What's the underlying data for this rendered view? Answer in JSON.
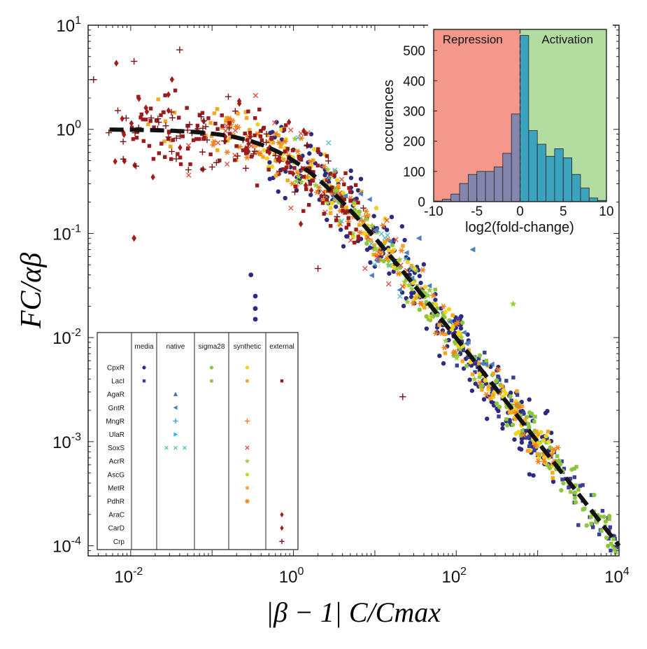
{
  "chart_data": [
    {
      "type": "scatter",
      "xlabel": "|β − 1| C/Cmax",
      "ylabel": "FC/αβ",
      "xscale": "log",
      "yscale": "log",
      "xlim": [
        0.003,
        10000
      ],
      "ylim": [
        8e-05,
        10
      ],
      "x_ticks": [
        {
          "value": 0.01,
          "base": "10",
          "exp": "-2"
        },
        {
          "value": 1,
          "base": "10",
          "exp": "0"
        },
        {
          "value": 100,
          "base": "10",
          "exp": "2"
        },
        {
          "value": 10000,
          "base": "10",
          "exp": "4"
        }
      ],
      "y_ticks": [
        {
          "value": 0.0001,
          "base": "10",
          "exp": "-4"
        },
        {
          "value": 0.001,
          "base": "10",
          "exp": "-3"
        },
        {
          "value": 0.01,
          "base": "10",
          "exp": "-2"
        },
        {
          "value": 0.1,
          "base": "10",
          "exp": "-1"
        },
        {
          "value": 1,
          "base": "10",
          "exp": "0"
        },
        {
          "value": 10,
          "base": "10",
          "exp": "1"
        }
      ],
      "fit_curve": {
        "description": "FC/αβ = 1/(1 + x)",
        "style": "black dashed"
      },
      "legend": {
        "columns": [
          "media",
          "native",
          "sigma28",
          "synthetic",
          "external"
        ],
        "rows": [
          {
            "name": "CpxR",
            "marker": "circle",
            "cells": [
              "#2e2a80",
              null,
              "#8cc63f",
              "#f2d21b",
              null
            ]
          },
          {
            "name": "LacI",
            "marker": "square",
            "cells": [
              "#3b3f99",
              null,
              "#8cc63f",
              "#f5a623",
              "#9b1c1c"
            ]
          },
          {
            "name": "AgaR",
            "marker": "triangle-up",
            "cells": [
              null,
              "#3a6fb0",
              null,
              null,
              null
            ]
          },
          {
            "name": "GntR",
            "marker": "triangle-left",
            "cells": [
              null,
              "#4a7fc0",
              null,
              null,
              null
            ]
          },
          {
            "name": "MngR",
            "marker": "plus",
            "cells": [
              null,
              "#3b9bd6",
              null,
              "#f07f1c",
              null
            ]
          },
          {
            "name": "UlaR",
            "marker": "triangle-right",
            "cells": [
              null,
              "#29b6e8",
              null,
              null,
              null
            ]
          },
          {
            "name": "SoxS",
            "marker": "x",
            "cells": [
              null,
              "#4fc1c9",
              null,
              "#e8483a",
              null
            ]
          },
          {
            "name": "AcrR",
            "marker": "star",
            "cells": [
              null,
              null,
              null,
              "#9bcc3a",
              null
            ]
          },
          {
            "name": "AscG",
            "marker": "circle",
            "cells": [
              null,
              null,
              null,
              "#c8d62b",
              null
            ]
          },
          {
            "name": "MetR",
            "marker": "square",
            "cells": [
              null,
              null,
              null,
              "#f7a13a",
              null
            ]
          },
          {
            "name": "PdhR",
            "marker": "asterisk",
            "cells": [
              null,
              null,
              null,
              "#f07f1c",
              null
            ]
          },
          {
            "name": "AraC",
            "marker": "diamond",
            "cells": [
              null,
              null,
              null,
              null,
              "#a31d1d"
            ]
          },
          {
            "name": "CarD",
            "marker": "diamond",
            "cells": [
              null,
              null,
              null,
              null,
              "#a31d1d"
            ]
          },
          {
            "name": "Crp",
            "marker": "plus",
            "cells": [
              null,
              null,
              null,
              null,
              "#7a1414"
            ]
          }
        ]
      },
      "clusters": [
        {
          "name": "media-CpxR",
          "marker": "circle",
          "color": "#2e2a80",
          "n": 260,
          "logx": [
            -0.3,
            3.2
          ],
          "spread": 0.18
        },
        {
          "name": "media-LacI",
          "marker": "square",
          "color": "#3b3f99",
          "n": 90,
          "logx": [
            2.0,
            4.0
          ],
          "spread": 0.12
        },
        {
          "name": "sigma28-CpxR",
          "marker": "circle",
          "color": "#8cc63f",
          "n": 90,
          "logx": [
            0.5,
            3.9
          ],
          "spread": 0.1
        },
        {
          "name": "sigma28-LacI",
          "marker": "square",
          "color": "#8cc63f",
          "n": 60,
          "logx": [
            1.5,
            4.0
          ],
          "spread": 0.1
        },
        {
          "name": "synthetic-CpxR",
          "marker": "circle",
          "color": "#f2d21b",
          "n": 110,
          "logx": [
            -0.5,
            3.3
          ],
          "spread": 0.12
        },
        {
          "name": "synthetic-LacI",
          "marker": "square",
          "color": "#f5a623",
          "n": 110,
          "logx": [
            -1.8,
            3.2
          ],
          "spread": 0.12
        },
        {
          "name": "synthetic-MngR",
          "marker": "asterisk",
          "color": "#f07f1c",
          "n": 90,
          "logx": [
            -1.0,
            3.3
          ],
          "spread": 0.12
        },
        {
          "name": "synthetic-SoxS",
          "marker": "x",
          "color": "#e8483a",
          "n": 40,
          "logx": [
            -1.5,
            1.5
          ],
          "spread": 0.2
        },
        {
          "name": "synthetic-AcrR",
          "marker": "star",
          "color": "#9bcc3a",
          "n": 45,
          "logx": [
            0.0,
            2.3
          ],
          "spread": 0.12
        },
        {
          "name": "external-LacI",
          "marker": "square",
          "color": "#9b1c1c",
          "n": 150,
          "logx": [
            -2.0,
            0.8
          ],
          "spread": 0.2
        },
        {
          "name": "external-AraC",
          "marker": "diamond",
          "color": "#a31d1d",
          "n": 35,
          "logx": [
            -2.2,
            0.3
          ],
          "spread": 0.28
        },
        {
          "name": "external-Crp",
          "marker": "plus",
          "color": "#7a1414",
          "n": 60,
          "logx": [
            -2.3,
            1.0
          ],
          "spread": 0.18
        },
        {
          "name": "native-mixed",
          "marker": "triangle-left",
          "color": "#4a7fc0",
          "n": 20,
          "logx": [
            0.5,
            2.5
          ],
          "spread": 0.15
        },
        {
          "name": "native-SoxS",
          "marker": "x",
          "color": "#4fc1c9",
          "n": 20,
          "logx": [
            0.0,
            1.5
          ],
          "spread": 0.15
        }
      ],
      "outliers": [
        {
          "x": 0.3,
          "y": 0.04,
          "marker": "circle",
          "color": "#2e2a80"
        },
        {
          "x": 0.34,
          "y": 0.025,
          "marker": "circle",
          "color": "#2e2a80"
        },
        {
          "x": 0.34,
          "y": 0.019,
          "marker": "circle",
          "color": "#2e2a80"
        },
        {
          "x": 0.34,
          "y": 0.015,
          "marker": "circle",
          "color": "#2e2a80"
        },
        {
          "x": 0.011,
          "y": 0.09,
          "marker": "diamond",
          "color": "#a31d1d"
        },
        {
          "x": 0.011,
          "y": 4.5,
          "marker": "plus",
          "color": "#7a1414"
        },
        {
          "x": 0.04,
          "y": 5.8,
          "marker": "plus",
          "color": "#7a1414"
        },
        {
          "x": 0.0035,
          "y": 3.0,
          "marker": "plus",
          "color": "#7a1414"
        },
        {
          "x": 22,
          "y": 0.0027,
          "marker": "plus",
          "color": "#7a1414"
        },
        {
          "x": 2.0,
          "y": 0.046,
          "marker": "plus",
          "color": "#7a1414"
        },
        {
          "x": 35,
          "y": 0.09,
          "marker": "triangle-left",
          "color": "#4a7fc0"
        },
        {
          "x": 160,
          "y": 0.07,
          "marker": "triangle-left",
          "color": "#4a7fc0"
        },
        {
          "x": 500,
          "y": 0.021,
          "marker": "star",
          "color": "#9bcc3a"
        }
      ]
    },
    {
      "type": "bar",
      "xlabel": "log2(fold-change)",
      "ylabel": "occurences",
      "xlim": [
        -10,
        10
      ],
      "ylim": [
        0,
        570
      ],
      "x_ticks": [
        "-10",
        "-5",
        "0",
        "5",
        "10"
      ],
      "y_ticks": [
        "0",
        "100",
        "200",
        "300",
        "400",
        "500"
      ],
      "regions": [
        {
          "label": "Repression",
          "from": -10,
          "to": 0,
          "color": "#f4988c"
        },
        {
          "label": "Activation",
          "from": 0,
          "to": 10,
          "color": "#b2dca0"
        }
      ],
      "bin_width": 1,
      "bins_left": [
        -10,
        -9,
        -8,
        -7,
        -6,
        -5,
        -4,
        -3,
        -2,
        -1,
        0,
        1,
        2,
        3,
        4,
        5,
        6,
        7,
        8,
        9
      ],
      "values": [
        2,
        8,
        25,
        60,
        90,
        100,
        100,
        115,
        160,
        290,
        550,
        235,
        190,
        150,
        175,
        145,
        90,
        45,
        12,
        4
      ],
      "colors": {
        "negative": "#8586ae",
        "positive": "#3ba3be"
      }
    }
  ]
}
